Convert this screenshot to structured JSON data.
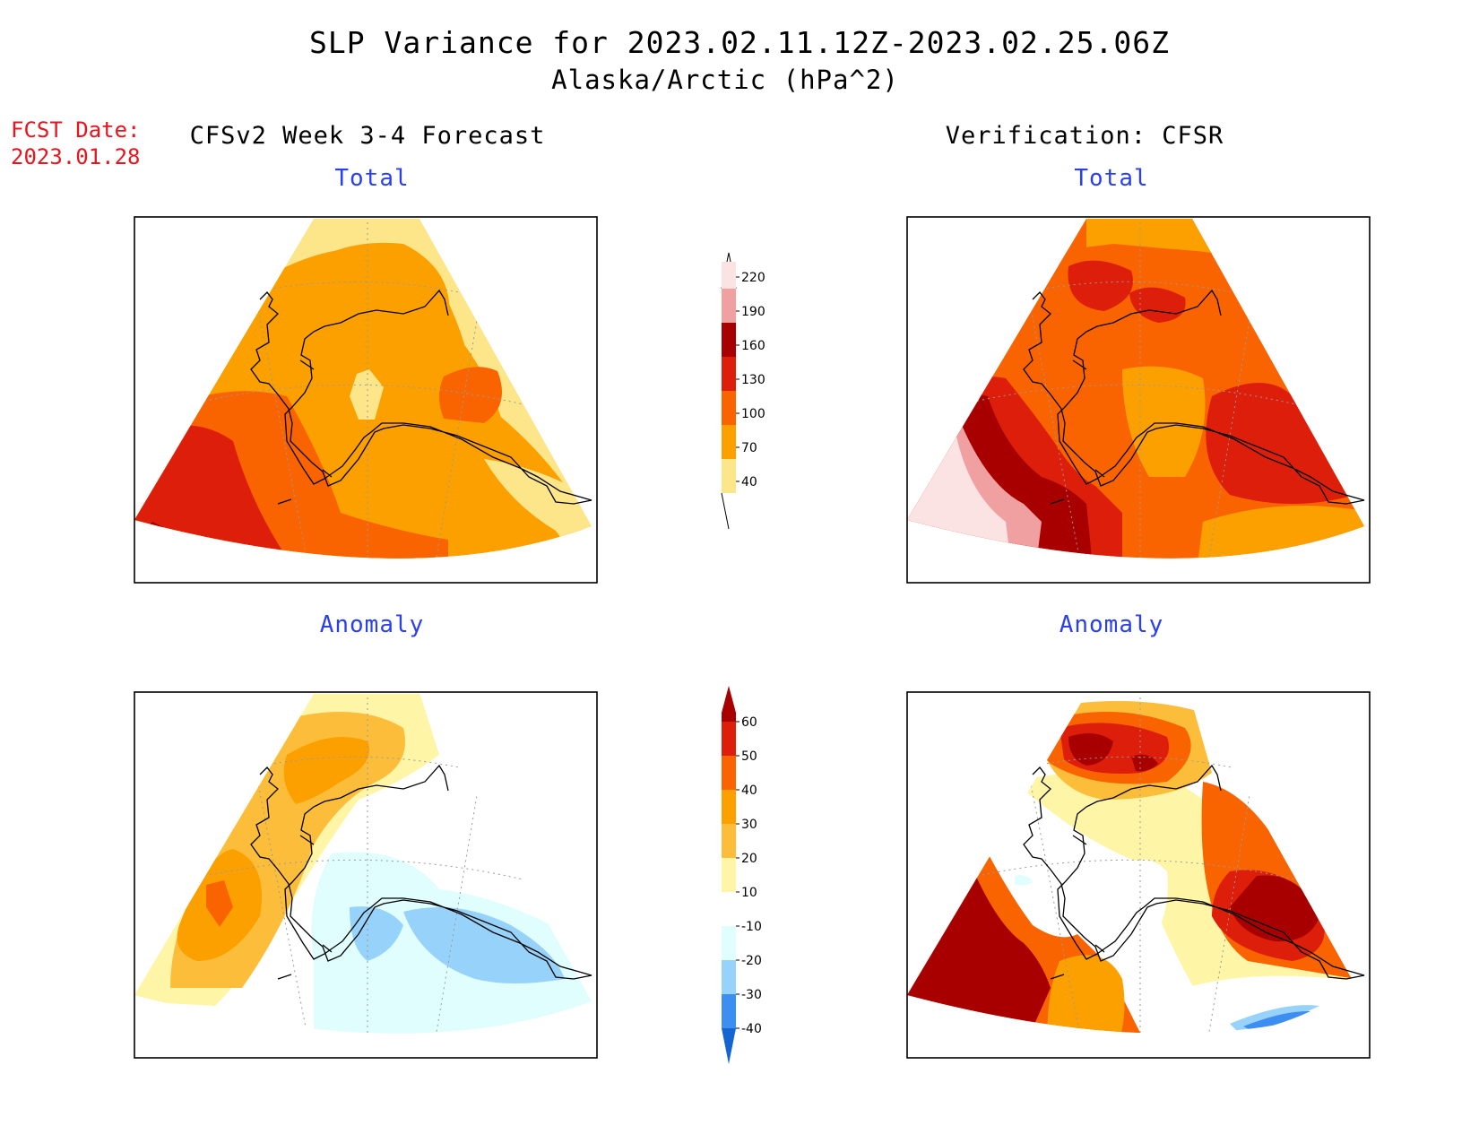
{
  "header": {
    "title": "SLP Variance for 2023.02.11.12Z-2023.02.25.06Z",
    "subtitle": "Alaska/Arctic (hPa^2)"
  },
  "fcst": {
    "label": "FCST Date:",
    "date": "2023.01.28"
  },
  "columns": {
    "left": "CFSv2 Week 3-4 Forecast",
    "right": "Verification: CFSR"
  },
  "panels": {
    "top_left": "Total",
    "top_right": "Total",
    "bottom_left": "Anomaly",
    "bottom_right": "Anomaly"
  },
  "colorbars": {
    "total": {
      "labels": [
        "220",
        "190",
        "160",
        "130",
        "100",
        "70",
        "40"
      ],
      "colors": [
        "#fbe3e3",
        "#f0a0a0",
        "#a80000",
        "#dd1e0a",
        "#fa6400",
        "#fca000",
        "#fde68a"
      ]
    },
    "anomaly": {
      "labels": [
        "60",
        "50",
        "40",
        "30",
        "20",
        "10",
        "-10",
        "-20",
        "-30",
        "-40"
      ],
      "colors": [
        "#a80000",
        "#dd1e0a",
        "#fa6400",
        "#fca000",
        "#fcbe3a",
        "#fef5a6",
        "#ffffff",
        "#e0fefe",
        "#96d2fa",
        "#3c8ef0",
        "#1464d2"
      ]
    }
  },
  "palette": {
    "light_yellow": "#fde68a",
    "orange": "#fca000",
    "dark_orange": "#fa6400",
    "red": "#dd1e0a",
    "dark_red": "#a80000",
    "pink": "#f0a0a0",
    "pale_pink": "#fbe3e3",
    "anom_yellow": "#fef5a6",
    "anom_lightorange": "#fcbe3a",
    "pale_cyan": "#e0fefe",
    "light_blue": "#96d2fa",
    "mid_blue": "#3c8ef0"
  }
}
